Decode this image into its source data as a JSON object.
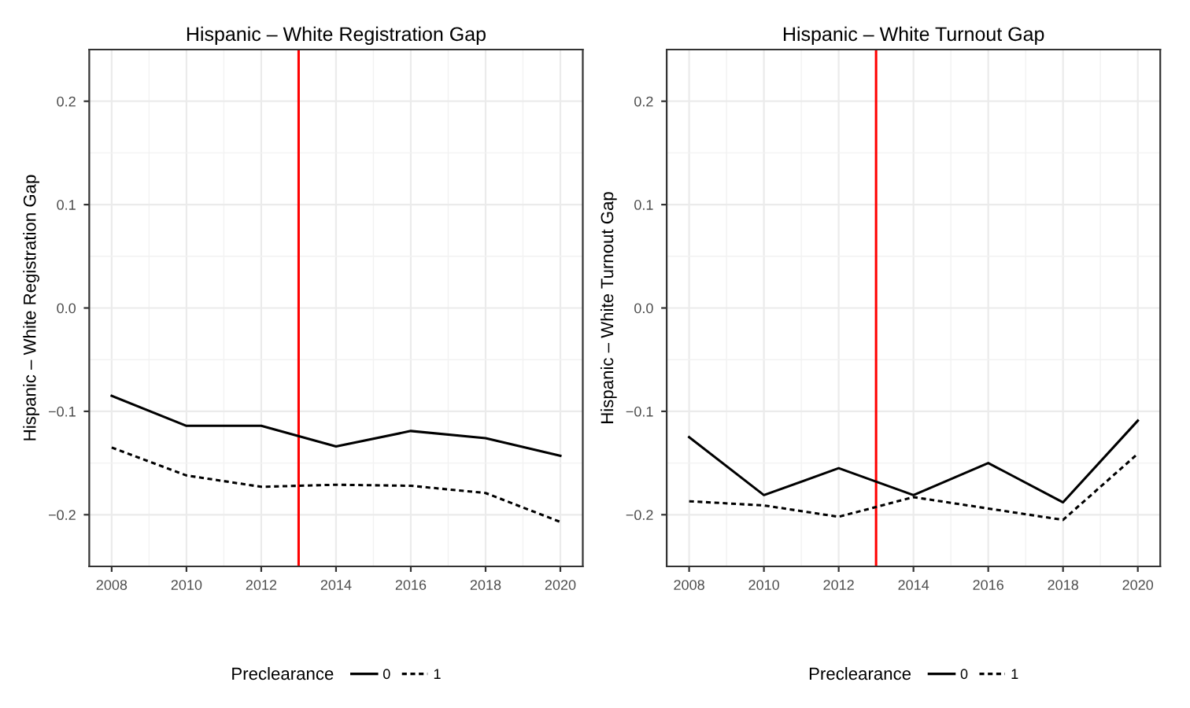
{
  "chart_data": [
    {
      "type": "line",
      "title": "Hispanic – White Registration Gap",
      "ylabel": "Hispanic – White Registration Gap",
      "legend_title": "Preclearance",
      "legend": "bottom",
      "grid": true,
      "x": [
        2008,
        2010,
        2012,
        2014,
        2016,
        2018,
        2020
      ],
      "xlim": [
        2007.4,
        2020.6
      ],
      "xticks": [
        2008,
        2010,
        2012,
        2014,
        2016,
        2018,
        2020
      ],
      "ylim": [
        -0.25,
        0.25
      ],
      "yticks": [
        {
          "value": -0.2,
          "label": "−0.2"
        },
        {
          "value": -0.1,
          "label": "−0.1"
        },
        {
          "value": 0.0,
          "label": "0.0"
        },
        {
          "value": 0.1,
          "label": "0.1"
        },
        {
          "value": 0.2,
          "label": "0.2"
        }
      ],
      "ref_lines": [
        {
          "axis": "x",
          "value": 2013,
          "label": null,
          "color": "#ff0000"
        }
      ],
      "series": [
        {
          "name": "0",
          "color": "#000000",
          "line_style": "solid",
          "values": [
            -0.085,
            -0.114,
            -0.114,
            -0.134,
            -0.119,
            -0.126,
            -0.143
          ]
        },
        {
          "name": "1",
          "color": "#000000",
          "line_style": "dotted",
          "values": [
            -0.135,
            -0.162,
            -0.173,
            -0.171,
            -0.172,
            -0.179,
            -0.207
          ]
        }
      ]
    },
    {
      "type": "line",
      "title": "Hispanic – White Turnout Gap",
      "ylabel": "Hispanic – White Turnout Gap",
      "legend_title": "Preclearance",
      "legend": "bottom",
      "grid": true,
      "x": [
        2008,
        2010,
        2012,
        2014,
        2016,
        2018,
        2020
      ],
      "xlim": [
        2007.4,
        2020.6
      ],
      "xticks": [
        2008,
        2010,
        2012,
        2014,
        2016,
        2018,
        2020
      ],
      "ylim": [
        -0.25,
        0.25
      ],
      "yticks": [
        {
          "value": -0.2,
          "label": "−0.2"
        },
        {
          "value": -0.1,
          "label": "−0.1"
        },
        {
          "value": 0.0,
          "label": "0.0"
        },
        {
          "value": 0.1,
          "label": "0.1"
        },
        {
          "value": 0.2,
          "label": "0.2"
        }
      ],
      "ref_lines": [
        {
          "axis": "x",
          "value": 2013,
          "label": null,
          "color": "#ff0000"
        }
      ],
      "series": [
        {
          "name": "0",
          "color": "#000000",
          "line_style": "solid",
          "values": [
            -0.125,
            -0.181,
            -0.155,
            -0.181,
            -0.15,
            -0.188,
            -0.109
          ]
        },
        {
          "name": "1",
          "color": "#000000",
          "line_style": "dotted",
          "values": [
            -0.187,
            -0.191,
            -0.202,
            -0.183,
            -0.194,
            -0.205,
            -0.141
          ]
        }
      ]
    }
  ]
}
